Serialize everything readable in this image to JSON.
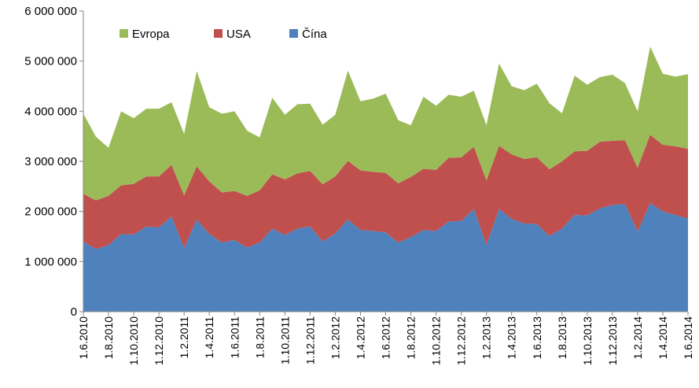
{
  "chart_data": {
    "type": "area",
    "stacked": true,
    "x": [
      "1.6.2010",
      "1.7.2010",
      "1.8.2010",
      "1.9.2010",
      "1.10.2010",
      "1.11.2010",
      "1.12.2010",
      "1.1.2011",
      "1.2.2011",
      "1.3.2011",
      "1.4.2011",
      "1.5.2011",
      "1.6.2011",
      "1.7.2011",
      "1.8.2011",
      "1.9.2011",
      "1.10.2011",
      "1.11.2011",
      "1.12.2011",
      "1.1.2012",
      "1.2.2012",
      "1.3.2012",
      "1.4.2012",
      "1.5.2012",
      "1.6.2012",
      "1.7.2012",
      "1.8.2012",
      "1.9.2012",
      "1.10.2012",
      "1.11.2012",
      "1.12.2012",
      "1.1.2013",
      "1.2.2013",
      "1.3.2013",
      "1.4.2013",
      "1.5.2013",
      "1.6.2013",
      "1.7.2013",
      "1.8.2013",
      "1.9.2013",
      "1.10.2013",
      "1.11.2013",
      "1.12.2013",
      "1.1.2014",
      "1.2.2014",
      "1.3.2014",
      "1.4.2014",
      "1.5.2014",
      "1.6.2014"
    ],
    "x_tick_labels": [
      "1.6.2010",
      "1.8.2010",
      "1.10.2010",
      "1.12.2010",
      "1.2.2011",
      "1.4.2011",
      "1.6.2011",
      "1.8.2011",
      "1.10.2011",
      "1.12.2011",
      "1.2.2012",
      "1.4.2012",
      "1.6.2012",
      "1.8.2012",
      "1.10.2012",
      "1.12.2012",
      "1.2.2013",
      "1.4.2013",
      "1.6.2013",
      "1.8.2013",
      "1.10.2013",
      "1.12.2013",
      "1.2.2014",
      "1.4.2014",
      "1.6.2014"
    ],
    "y_tick_labels": [
      "0",
      "1 000 000",
      "2 000 000",
      "3 000 000",
      "4 000 000",
      "5 000 000",
      "6 000 000"
    ],
    "ylim": [
      0,
      6000000
    ],
    "series": [
      {
        "name": "Čína",
        "color": "#4f81bd",
        "values": [
          1400000,
          1250000,
          1330000,
          1550000,
          1540000,
          1700000,
          1680000,
          1900000,
          1270000,
          1840000,
          1550000,
          1380000,
          1430000,
          1280000,
          1380000,
          1660000,
          1530000,
          1660000,
          1700000,
          1400000,
          1560000,
          1840000,
          1630000,
          1610000,
          1580000,
          1380000,
          1490000,
          1630000,
          1610000,
          1800000,
          1810000,
          2050000,
          1330000,
          2050000,
          1850000,
          1760000,
          1750000,
          1510000,
          1660000,
          1930000,
          1920000,
          2060000,
          2130000,
          2150000,
          1600000,
          2170000,
          2000000,
          1930000,
          1860000
        ]
      },
      {
        "name": "USA",
        "color": "#c0504d",
        "values": [
          950000,
          970000,
          980000,
          970000,
          1010000,
          1000000,
          1020000,
          1030000,
          1050000,
          1060000,
          1050000,
          1000000,
          980000,
          1030000,
          1040000,
          1080000,
          1110000,
          1100000,
          1110000,
          1140000,
          1140000,
          1170000,
          1190000,
          1180000,
          1190000,
          1180000,
          1200000,
          1220000,
          1220000,
          1270000,
          1270000,
          1240000,
          1290000,
          1260000,
          1290000,
          1290000,
          1330000,
          1330000,
          1340000,
          1270000,
          1290000,
          1330000,
          1280000,
          1270000,
          1270000,
          1360000,
          1330000,
          1370000,
          1390000
        ]
      },
      {
        "name": "Evropa",
        "color": "#9bbb59",
        "values": [
          1600000,
          1270000,
          960000,
          1480000,
          1310000,
          1350000,
          1350000,
          1250000,
          1230000,
          1900000,
          1480000,
          1570000,
          1590000,
          1300000,
          1060000,
          1530000,
          1290000,
          1380000,
          1340000,
          1190000,
          1230000,
          1800000,
          1380000,
          1460000,
          1580000,
          1260000,
          1030000,
          1440000,
          1280000,
          1260000,
          1210000,
          1120000,
          1100000,
          1640000,
          1360000,
          1370000,
          1470000,
          1320000,
          960000,
          1510000,
          1320000,
          1290000,
          1320000,
          1140000,
          1130000,
          1760000,
          1420000,
          1390000,
          1490000
        ]
      }
    ],
    "legend_position": "top-left",
    "grid": false
  }
}
